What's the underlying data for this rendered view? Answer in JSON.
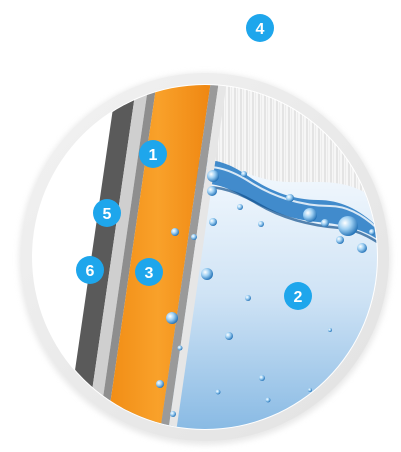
{
  "diagram": {
    "colors": {
      "marker": "#1ea6ec",
      "orange_layer": "#f7931e",
      "water_top": "#dfeefa",
      "water_bottom": "#6aa9dc",
      "frame_ring": "#ececec"
    },
    "markers": [
      {
        "id": "1",
        "label": "1"
      },
      {
        "id": "2",
        "label": "2"
      },
      {
        "id": "3",
        "label": "3"
      },
      {
        "id": "4",
        "label": "4"
      },
      {
        "id": "5",
        "label": "5"
      },
      {
        "id": "6",
        "label": "6"
      }
    ]
  }
}
